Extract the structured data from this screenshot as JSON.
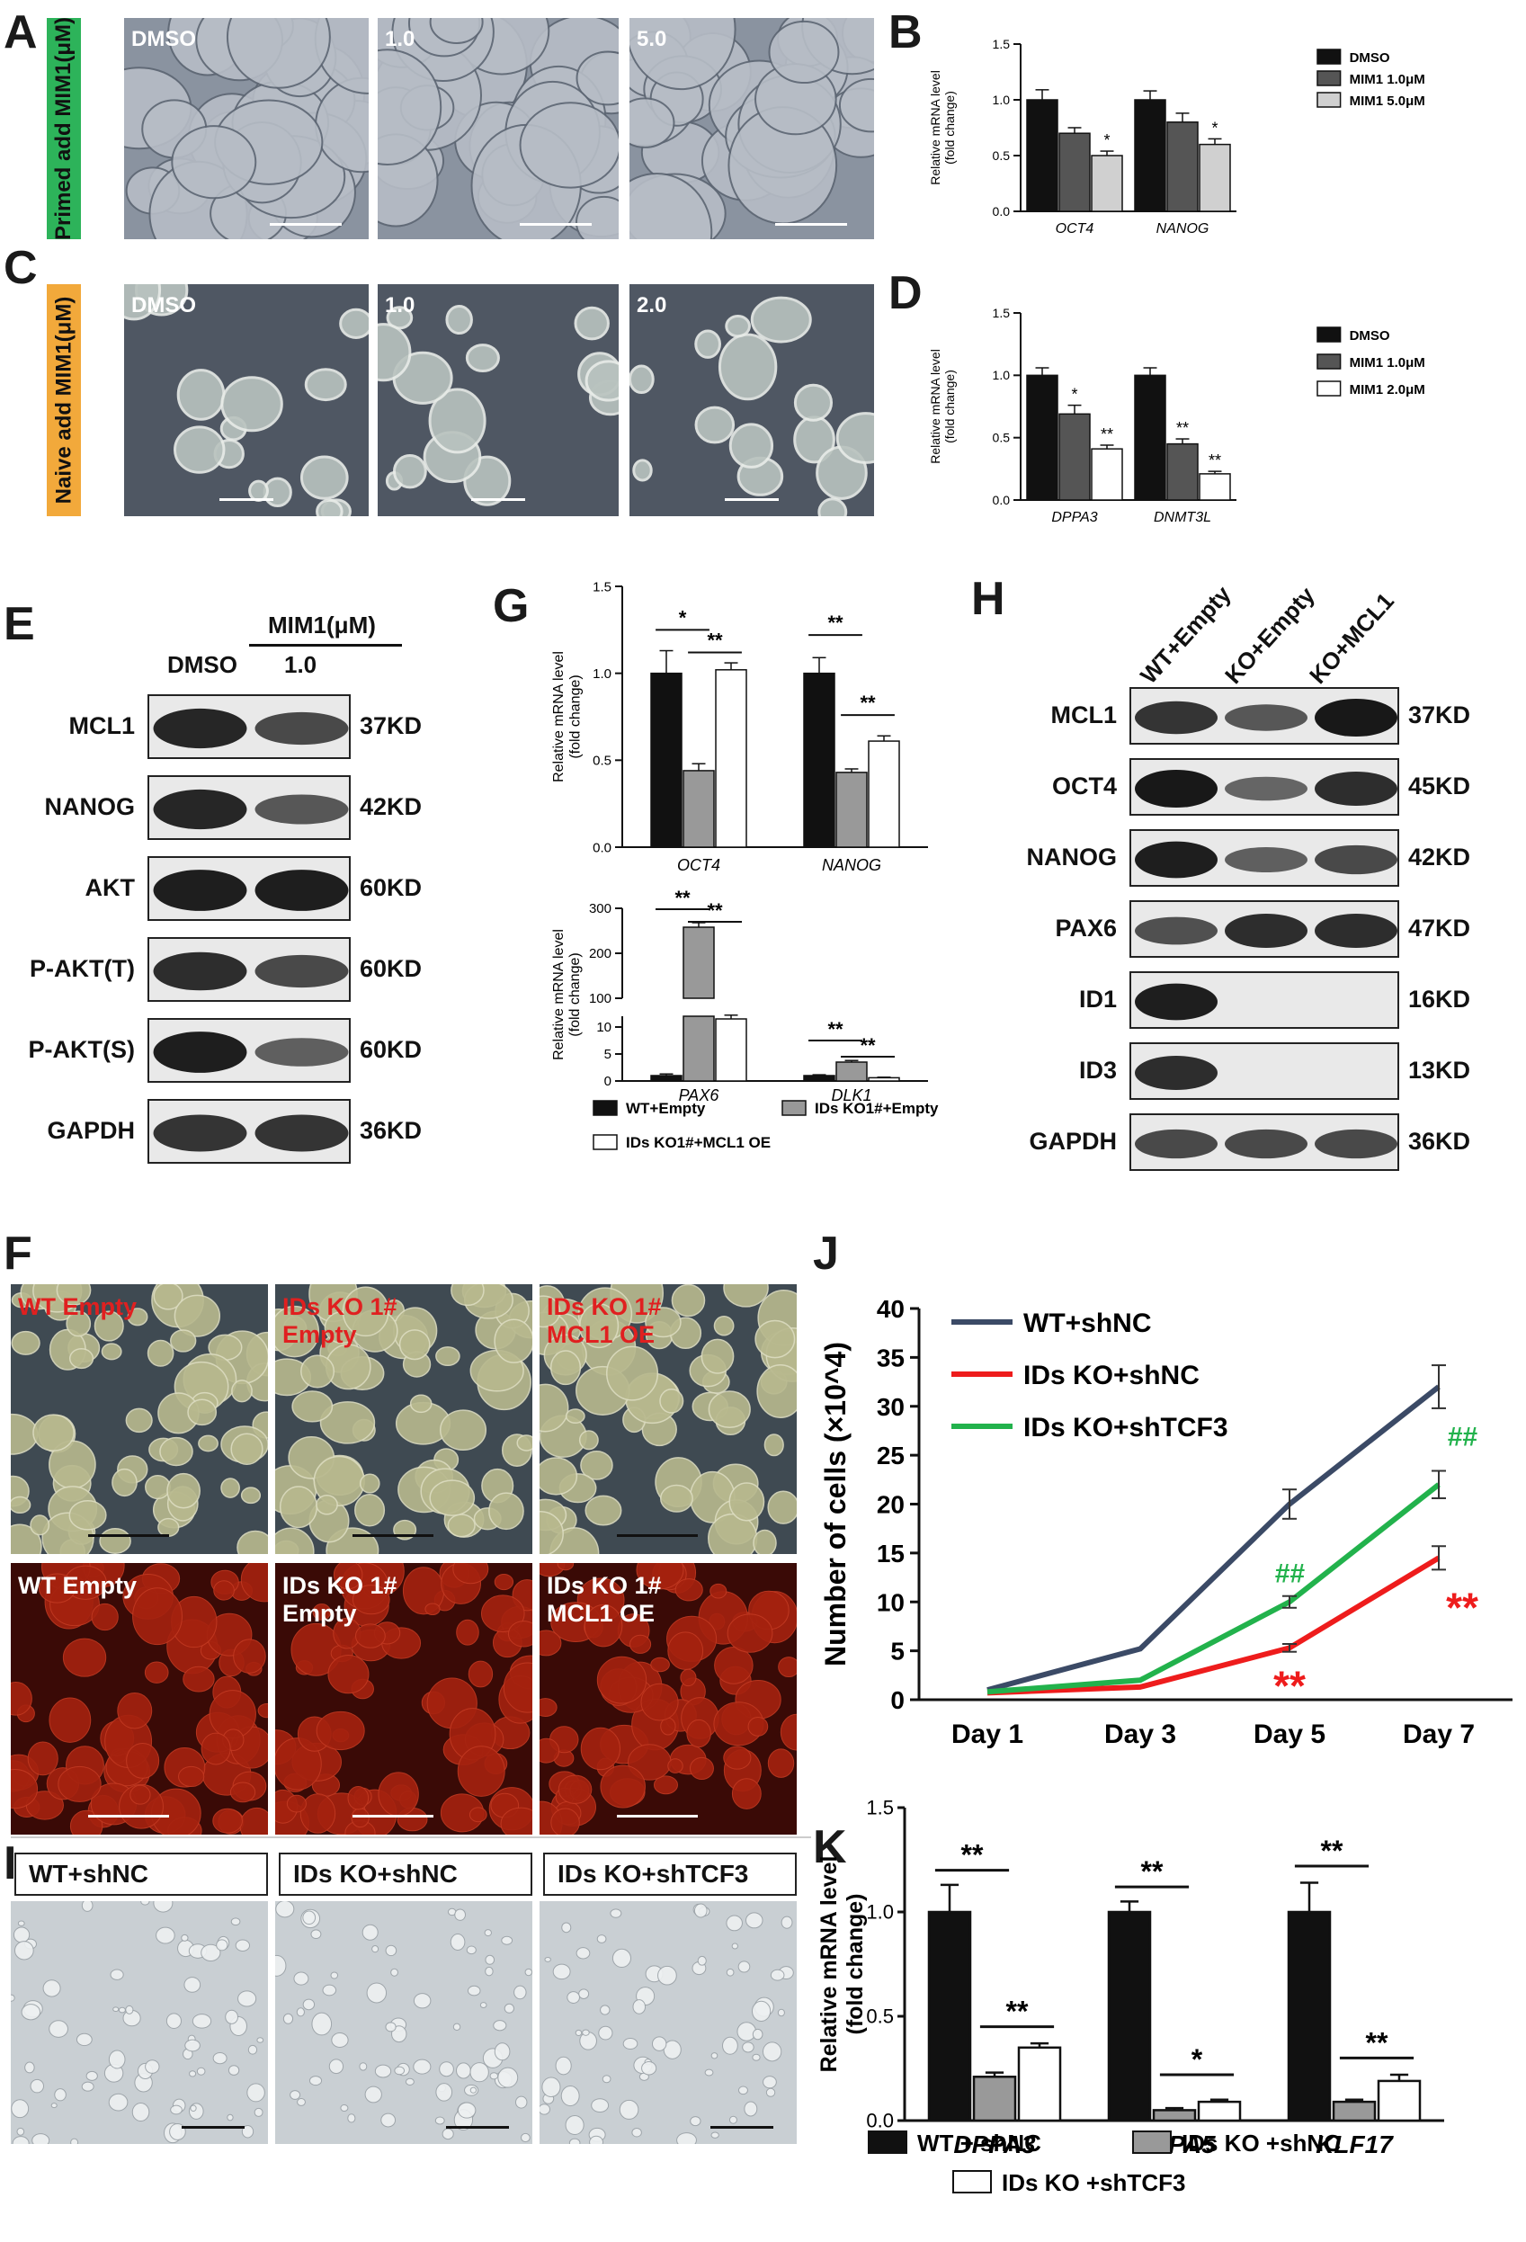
{
  "panel_letters": [
    "A",
    "B",
    "C",
    "D",
    "E",
    "F",
    "G",
    "H",
    "I",
    "J",
    "K"
  ],
  "panelA": {
    "side_label": "Primed add MIM1(μM)",
    "side_color": "#2db35a",
    "images": [
      "DMSO",
      "1.0",
      "5.0"
    ]
  },
  "panelC": {
    "side_label": "Naive add MIM1(μM)",
    "side_color": "#f2a93b",
    "images": [
      "DMSO",
      "1.0",
      "2.0"
    ]
  },
  "panelE": {
    "header_group": "MIM1(μM)",
    "lane_dmso": "DMSO",
    "lane_dose": "1.0",
    "rows": [
      {
        "label": "MCL1",
        "kd": "37KD",
        "bands": [
          0.85,
          0.6
        ]
      },
      {
        "label": "NANOG",
        "kd": "42KD",
        "bands": [
          0.85,
          0.5
        ]
      },
      {
        "label": "AKT",
        "kd": "60KD",
        "bands": [
          0.9,
          0.9
        ]
      },
      {
        "label": "P-AKT(T)",
        "kd": "60KD",
        "bands": [
          0.8,
          0.6
        ]
      },
      {
        "label": "P-AKT(S)",
        "kd": "60KD",
        "bands": [
          0.9,
          0.45
        ]
      },
      {
        "label": "GAPDH",
        "kd": "36KD",
        "bands": [
          0.75,
          0.75
        ]
      }
    ]
  },
  "panelH": {
    "lanes": [
      "WT+Empty",
      "KO+Empty",
      "KO+MCL1"
    ],
    "rows": [
      {
        "label": "MCL1",
        "kd": "37KD",
        "bands": [
          0.75,
          0.5,
          0.95
        ]
      },
      {
        "label": "OCT4",
        "kd": "45KD",
        "bands": [
          0.95,
          0.4,
          0.8
        ]
      },
      {
        "label": "NANOG",
        "kd": "42KD",
        "bands": [
          0.9,
          0.45,
          0.6
        ]
      },
      {
        "label": "PAX6",
        "kd": "47KD",
        "bands": [
          0.55,
          0.8,
          0.8
        ]
      },
      {
        "label": "ID1",
        "kd": "16KD",
        "bands": [
          0.9,
          0.0,
          0.0
        ]
      },
      {
        "label": "ID3",
        "kd": "13KD",
        "bands": [
          0.8,
          0.0,
          0.0
        ]
      },
      {
        "label": "GAPDH",
        "kd": "36KD",
        "bands": [
          0.6,
          0.6,
          0.6
        ]
      }
    ]
  },
  "panelF": {
    "top_labels": [
      "WT Empty",
      "IDs KO 1#\nEmpty",
      "IDs KO 1#\nMCL1 OE"
    ],
    "bottom_labels": [
      "WT Empty",
      "IDs KO 1#\nEmpty",
      "IDs KO 1#\nMCL1 OE"
    ],
    "top_label_color": "#e02020",
    "bottom_label_color": "#ffffff"
  },
  "panelI": {
    "labels": [
      "WT+shNC",
      "IDs KO+shNC",
      "IDs KO+shTCF3"
    ]
  },
  "colors": {
    "black": "#111111",
    "dark_gray": "#555555",
    "light_gray": "#d0d0d0",
    "mid_gray": "#999999",
    "white": "#ffffff",
    "j_wt": "#3b4a66",
    "j_ko": "#ee1c1c",
    "j_tcf3": "#22b24c",
    "sig_red": "#ee1c1c",
    "sig_green": "#22b24c"
  },
  "chart_data": [
    {
      "id": "B",
      "type": "bar",
      "ylabel": "Relative mRNA level\n(fold change)",
      "ylim": [
        0,
        1.5
      ],
      "yticks": [
        "0.0",
        "0.5",
        "1.0",
        "1.5"
      ],
      "categories": [
        "OCT4",
        "NANOG"
      ],
      "series": [
        {
          "name": "DMSO",
          "values": [
            1.0,
            1.0
          ],
          "err": [
            0.09,
            0.08
          ],
          "fill": "black"
        },
        {
          "name": "MIM1 1.0μM",
          "values": [
            0.7,
            0.8
          ],
          "err": [
            0.05,
            0.08
          ],
          "fill": "dark_gray"
        },
        {
          "name": "MIM1 5.0μM",
          "values": [
            0.5,
            0.6
          ],
          "err": [
            0.04,
            0.05
          ],
          "fill": "light_gray"
        }
      ],
      "sig": [
        {
          "cat": 0,
          "series": 2,
          "text": "*"
        },
        {
          "cat": 1,
          "series": 2,
          "text": "*"
        }
      ],
      "legend": "right"
    },
    {
      "id": "D",
      "type": "bar",
      "ylabel": "Relative mRNA level\n(fold change)",
      "ylim": [
        0,
        1.5
      ],
      "yticks": [
        "0.0",
        "0.5",
        "1.0",
        "1.5"
      ],
      "categories": [
        "DPPA3",
        "DNMT3L"
      ],
      "series": [
        {
          "name": "DMSO",
          "values": [
            1.0,
            1.0
          ],
          "err": [
            0.06,
            0.06
          ],
          "fill": "black"
        },
        {
          "name": "MIM1 1.0μM",
          "values": [
            0.69,
            0.45
          ],
          "err": [
            0.07,
            0.04
          ],
          "fill": "dark_gray"
        },
        {
          "name": "MIM1 2.0μM",
          "values": [
            0.41,
            0.21
          ],
          "err": [
            0.03,
            0.02
          ],
          "fill": "white"
        }
      ],
      "sig": [
        {
          "cat": 0,
          "series": 1,
          "text": "*"
        },
        {
          "cat": 0,
          "series": 2,
          "text": "**"
        },
        {
          "cat": 1,
          "series": 1,
          "text": "**"
        },
        {
          "cat": 1,
          "series": 2,
          "text": "**"
        }
      ],
      "legend": "right"
    },
    {
      "id": "G-top",
      "type": "bar",
      "ylabel": "Relative mRNA level\n(fold change)",
      "ylim": [
        0,
        1.5
      ],
      "yticks": [
        "0.0",
        "0.5",
        "1.0",
        "1.5"
      ],
      "categories": [
        "OCT4",
        "NANOG"
      ],
      "series": [
        {
          "name": "WT+Empty",
          "values": [
            1.0,
            1.0
          ],
          "err": [
            0.13,
            0.09
          ],
          "fill": "black"
        },
        {
          "name": "IDs KO1#+Empty",
          "values": [
            0.44,
            0.43
          ],
          "err": [
            0.04,
            0.02
          ],
          "fill": "mid_gray"
        },
        {
          "name": "IDs KO1#+MCL1 OE",
          "values": [
            1.02,
            0.61
          ],
          "err": [
            0.04,
            0.03
          ],
          "fill": "white"
        }
      ],
      "brackets": [
        {
          "cat": 0,
          "from": 0,
          "to": 1,
          "text": "*",
          "level": 1.25
        },
        {
          "cat": 0,
          "from": 1,
          "to": 2,
          "text": "**",
          "level": 1.12
        },
        {
          "cat": 1,
          "from": 0,
          "to": 1,
          "text": "**",
          "level": 1.22
        },
        {
          "cat": 1,
          "from": 1,
          "to": 2,
          "text": "**",
          "level": 0.76
        }
      ]
    },
    {
      "id": "G-bottom",
      "type": "bar",
      "ylabel": "Relative mRNA level\n(fold change)",
      "broken_axis": true,
      "lower_ylim": [
        0,
        12
      ],
      "lower_yticks": [
        "0",
        "5",
        "10"
      ],
      "upper_ylim": [
        100,
        300
      ],
      "upper_yticks": [
        "100",
        "200",
        "300"
      ],
      "categories": [
        "PAX6",
        "DLK1"
      ],
      "series": [
        {
          "name": "WT+Empty",
          "values": [
            1.0,
            1.0
          ],
          "err": [
            0.3,
            0.15
          ],
          "fill": "black"
        },
        {
          "name": "IDs KO1#+Empty",
          "values": [
            258,
            3.5
          ],
          "err": [
            10,
            0.3
          ],
          "fill": "mid_gray"
        },
        {
          "name": "IDs KO1#+MCL1 OE",
          "values": [
            11.5,
            0.6
          ],
          "err": [
            0.7,
            0.1
          ],
          "fill": "white"
        }
      ],
      "brackets": [
        {
          "cat": 0,
          "from": 0,
          "to": 1,
          "text": "**",
          "y_upper": 298
        },
        {
          "cat": 0,
          "from": 1,
          "to": 2,
          "text": "**",
          "y_upper": 270
        },
        {
          "cat": 1,
          "from": 0,
          "to": 1,
          "text": "**",
          "y_lower": 7.5
        },
        {
          "cat": 1,
          "from": 1,
          "to": 2,
          "text": "**",
          "y_lower": 4.5
        }
      ],
      "legend": "bottom"
    },
    {
      "id": "J",
      "type": "line",
      "ylabel": "Number of cells (×10^4)",
      "ylim": [
        0,
        40
      ],
      "yticks": [
        "0",
        "5",
        "10",
        "15",
        "20",
        "25",
        "30",
        "35",
        "40"
      ],
      "categories": [
        "Day 1",
        "Day 3",
        "Day 5",
        "Day 7"
      ],
      "series": [
        {
          "name": "WT+shNC",
          "values": [
            1.0,
            5.2,
            20.0,
            32.0
          ],
          "err": [
            0.2,
            0.2,
            1.5,
            2.2
          ],
          "color": "j_wt"
        },
        {
          "name": "IDs KO+shNC",
          "values": [
            0.7,
            1.3,
            5.3,
            14.5
          ],
          "err": [
            0.1,
            0.2,
            0.4,
            1.2
          ],
          "color": "j_ko"
        },
        {
          "name": "IDs KO+shTCF3",
          "values": [
            0.8,
            2.0,
            10.0,
            22.0
          ],
          "err": [
            0.1,
            0.2,
            0.6,
            1.4
          ],
          "color": "j_tcf3"
        }
      ],
      "sig": [
        {
          "x": 2,
          "y": 12.0,
          "text": "##",
          "color": "sig_green"
        },
        {
          "x": 2,
          "y": 2.0,
          "text": "**",
          "color": "sig_red"
        },
        {
          "x": 3,
          "y": 26.0,
          "text": "##",
          "color": "sig_green"
        },
        {
          "x": 3,
          "y": 10.0,
          "text": "**",
          "color": "sig_red"
        }
      ],
      "legend": "top-left"
    },
    {
      "id": "K",
      "type": "bar",
      "ylabel": "Relative mRNA level\n(fold change)",
      "ylim": [
        0,
        1.5
      ],
      "yticks": [
        "0.0",
        "0.5",
        "1.0",
        "1.5"
      ],
      "categories": [
        "DPPA3",
        "DPPA5",
        "KLF17"
      ],
      "series": [
        {
          "name": "WT + shNC",
          "values": [
            1.0,
            1.0,
            1.0
          ],
          "err": [
            0.13,
            0.05,
            0.14
          ],
          "fill": "black"
        },
        {
          "name": "IDs KO +shNC",
          "values": [
            0.21,
            0.05,
            0.09
          ],
          "err": [
            0.02,
            0.01,
            0.01
          ],
          "fill": "mid_gray"
        },
        {
          "name": "IDs KO +shTCF3",
          "values": [
            0.35,
            0.09,
            0.19
          ],
          "err": [
            0.02,
            0.01,
            0.03
          ],
          "fill": "white"
        }
      ],
      "brackets": [
        {
          "cat": 0,
          "from": 0,
          "to": 1,
          "text": "**",
          "level": 1.2
        },
        {
          "cat": 0,
          "from": 1,
          "to": 2,
          "text": "**",
          "level": 0.45
        },
        {
          "cat": 1,
          "from": 0,
          "to": 1,
          "text": "**",
          "level": 1.12
        },
        {
          "cat": 1,
          "from": 1,
          "to": 2,
          "text": "*",
          "level": 0.22
        },
        {
          "cat": 2,
          "from": 0,
          "to": 1,
          "text": "**",
          "level": 1.22
        },
        {
          "cat": 2,
          "from": 1,
          "to": 2,
          "text": "**",
          "level": 0.3
        }
      ],
      "legend": "bottom"
    }
  ]
}
